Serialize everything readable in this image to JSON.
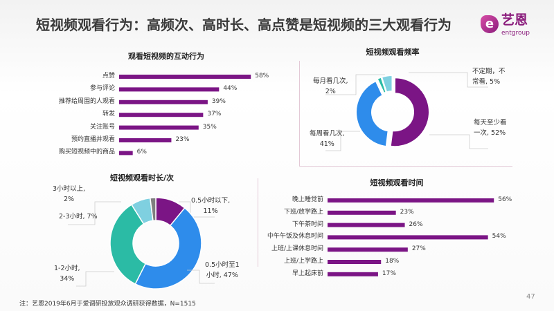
{
  "title": "短视频观看行为：高频次、高时长、高点赞是短视频的三大观看行为",
  "logo": {
    "cn": "艺恩",
    "en": "entgroup",
    "mark": "e"
  },
  "colors": {
    "purple": "#7b1585",
    "blue": "#2e8ceb",
    "teal": "#2bbba5",
    "lightblue": "#7fd0e0",
    "gray": "#7f7f7f"
  },
  "chart_data": [
    {
      "type": "bar",
      "orientation": "horizontal",
      "title": "观看短视频的互动行为",
      "categories": [
        "点赞",
        "参与评论",
        "推荐给周围的人观看",
        "转发",
        "关注账号",
        "预约直播并观看",
        "购买短视频中的商品"
      ],
      "values": [
        58,
        44,
        39,
        37,
        35,
        23,
        6
      ],
      "labels": [
        "58%",
        "44%",
        "39%",
        "37%",
        "35%",
        "23%",
        "6%"
      ],
      "unit": "%"
    },
    {
      "type": "pie",
      "donut": true,
      "title": "短视频观看频率",
      "categories": [
        "每天至少看一次",
        "每周看几次",
        "每月看几次",
        "不定期，不常看"
      ],
      "values": [
        52,
        41,
        2,
        5
      ],
      "labels": [
        [
          "每天至少看",
          "一次, 52%"
        ],
        [
          "每周看几次,",
          "41%"
        ],
        [
          "每月看几次,",
          "2%"
        ],
        [
          "不定期，不",
          "常看, 5%"
        ]
      ]
    },
    {
      "type": "pie",
      "donut": true,
      "title": "短视频观看时长/次",
      "categories": [
        "0.5小时以下",
        "0.5小时至1小时",
        "1-2小时",
        "2-3小时",
        "3小时以上"
      ],
      "values": [
        11,
        47,
        34,
        7,
        2
      ],
      "labels": [
        [
          "0.5小时以下,",
          "11%"
        ],
        [
          "0.5小时至1",
          "小时, 47%"
        ],
        [
          "1-2小时,",
          "34%"
        ],
        [
          "2-3小时, 7%"
        ],
        [
          "3小时以上,",
          "2%"
        ]
      ]
    },
    {
      "type": "bar",
      "orientation": "horizontal",
      "title": "短视频观看时间",
      "categories": [
        "晚上睡觉前",
        "下班/放学路上",
        "下午茶时间",
        "中午午饭及休息时间",
        "上班/上课休息时间",
        "上班/上学路上",
        "早上起床前"
      ],
      "values": [
        56,
        23,
        26,
        54,
        27,
        18,
        17
      ],
      "labels": [
        "56%",
        "23%",
        "26%",
        "54%",
        "27%",
        "18%",
        "17%"
      ],
      "unit": "%"
    }
  ],
  "note": "注：艺恩2019年6月于爱调研投放观众调研获得数据，N=1515",
  "page": "47"
}
